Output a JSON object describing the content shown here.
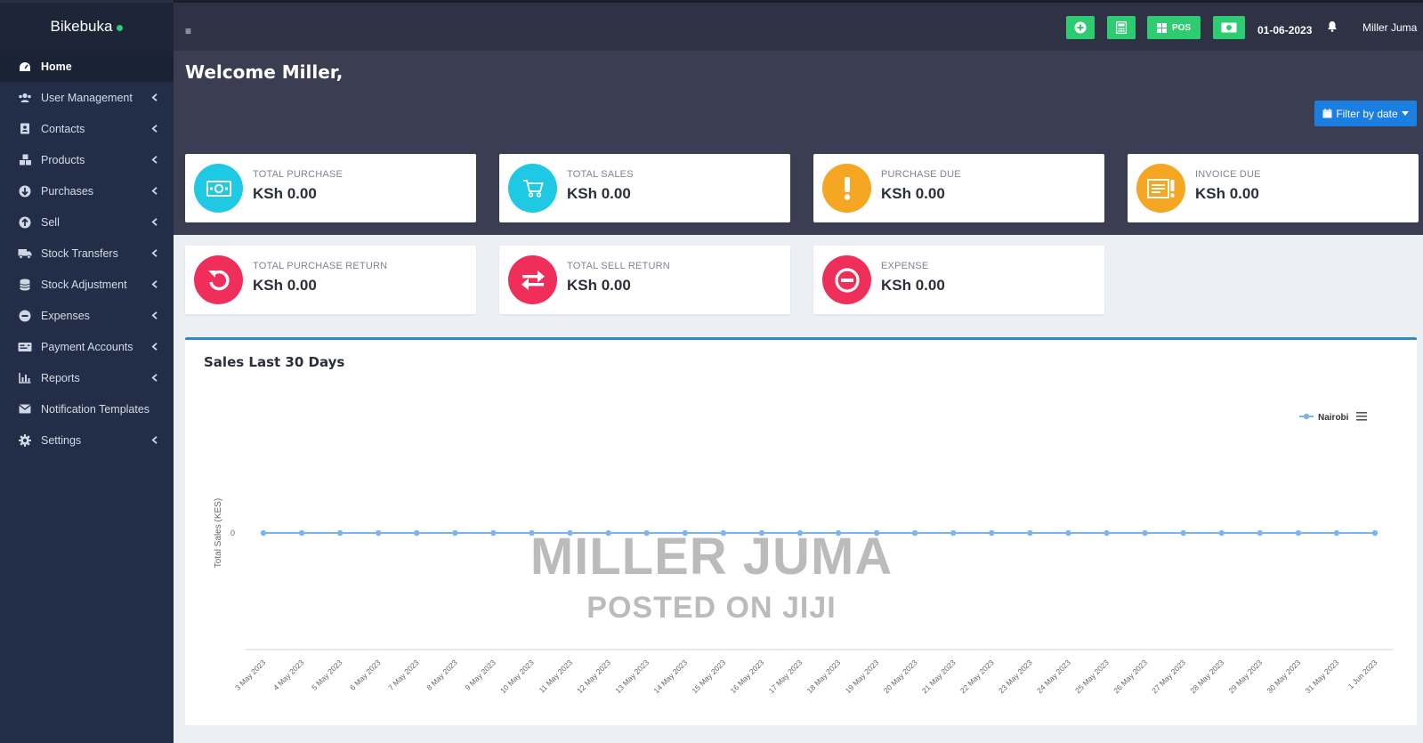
{
  "brand": {
    "name": "Bikebuka"
  },
  "sidebar": {
    "items": [
      {
        "label": "Home",
        "icon": "dashboard-icon",
        "active": true
      },
      {
        "label": "User Management",
        "icon": "users-icon"
      },
      {
        "label": "Contacts",
        "icon": "address-book-icon"
      },
      {
        "label": "Products",
        "icon": "cubes-icon"
      },
      {
        "label": "Purchases",
        "icon": "arrow-circle-down-icon"
      },
      {
        "label": "Sell",
        "icon": "arrow-circle-up-icon"
      },
      {
        "label": "Stock Transfers",
        "icon": "truck-icon"
      },
      {
        "label": "Stock Adjustment",
        "icon": "database-icon"
      },
      {
        "label": "Expenses",
        "icon": "minus-circle-icon"
      },
      {
        "label": "Payment Accounts",
        "icon": "money-check-icon"
      },
      {
        "label": "Reports",
        "icon": "bar-chart-icon"
      },
      {
        "label": "Notification Templates",
        "icon": "envelope-icon"
      },
      {
        "label": "Settings",
        "icon": "cog-icon"
      }
    ]
  },
  "topbar": {
    "menu_icon": "≡",
    "pos_label": "POS",
    "date": "01-06-2023",
    "user": "Miller Juma",
    "accent_color": "#2ecc71"
  },
  "header": {
    "welcome": "Welcome Miller,",
    "filter_label": "Filter by date"
  },
  "cards": [
    {
      "label": "TOTAL PURCHASE",
      "value": "KSh 0.00",
      "color": "#1fc8e3",
      "icon": "money-icon"
    },
    {
      "label": "TOTAL SALES",
      "value": "KSh 0.00",
      "color": "#1fc8e3",
      "icon": "cart-icon"
    },
    {
      "label": "PURCHASE DUE",
      "value": "KSh 0.00",
      "color": "#f5a623",
      "icon": "exclamation-icon"
    },
    {
      "label": "INVOICE DUE",
      "value": "KSh 0.00",
      "color": "#f5a623",
      "icon": "invoice-icon"
    },
    {
      "label": "TOTAL PURCHASE RETURN",
      "value": "KSh 0.00",
      "color": "#ef2f5a",
      "icon": "undo-icon"
    },
    {
      "label": "TOTAL SELL RETURN",
      "value": "KSh 0.00",
      "color": "#ef2f5a",
      "icon": "exchange-icon"
    },
    {
      "label": "EXPENSE",
      "value": "KSh 0.00",
      "color": "#ef2f5a",
      "icon": "minus-circle-icon"
    }
  ],
  "chart_section": {
    "title": "Sales Last 30 Days"
  },
  "chart_data": {
    "type": "line",
    "ylabel": "Total Sales (KES)",
    "yticks": [
      "0"
    ],
    "categories": [
      "3 May 2023",
      "4 May 2023",
      "5 May 2023",
      "6 May 2023",
      "7 May 2023",
      "8 May 2023",
      "9 May 2023",
      "10 May 2023",
      "11 May 2023",
      "12 May 2023",
      "13 May 2023",
      "14 May 2023",
      "15 May 2023",
      "16 May 2023",
      "17 May 2023",
      "18 May 2023",
      "19 May 2023",
      "20 May 2023",
      "21 May 2023",
      "22 May 2023",
      "23 May 2023",
      "24 May 2023",
      "25 May 2023",
      "26 May 2023",
      "27 May 2023",
      "28 May 2023",
      "29 May 2023",
      "30 May 2023",
      "31 May 2023",
      "1 Jun 2023"
    ],
    "series": [
      {
        "name": "Nairobi",
        "color": "#7cb5ec",
        "values": [
          0,
          0,
          0,
          0,
          0,
          0,
          0,
          0,
          0,
          0,
          0,
          0,
          0,
          0,
          0,
          0,
          0,
          0,
          0,
          0,
          0,
          0,
          0,
          0,
          0,
          0,
          0,
          0,
          0,
          0
        ]
      }
    ],
    "legend": "top-right"
  },
  "watermark": {
    "line1": "MILLER JUMA",
    "line2": "POSTED ON JIJI"
  }
}
